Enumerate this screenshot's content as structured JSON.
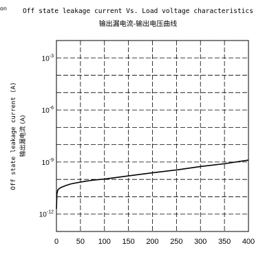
{
  "page_fragment": "on",
  "chart_data": {
    "type": "line",
    "title": "Off state leakage current Vs. Load voltage characteristics",
    "subtitle": "输出漏电流-输出电压曲线",
    "xlabel": "",
    "ylabel": "Off state leakage current (A)",
    "ylabel_zh": "输出漏电流 (A)",
    "x_scale": "linear",
    "y_scale": "log",
    "xlim": [
      0,
      400
    ],
    "ylim": [
      1e-13,
      0.01
    ],
    "x_ticks": [
      0,
      50,
      100,
      150,
      200,
      250,
      300,
      350,
      400
    ],
    "x_tick_labels": [
      "0",
      "50",
      "100",
      "150",
      "200",
      "250",
      "300",
      "350",
      "400"
    ],
    "y_ticks": [
      0.001,
      1e-06,
      1e-09,
      1e-12
    ],
    "y_tick_labels": [
      {
        "base": "10",
        "exp": "-3"
      },
      {
        "base": "10",
        "exp": "-6"
      },
      {
        "base": "10",
        "exp": "-9"
      },
      {
        "base": "10",
        "exp": "-12"
      }
    ],
    "grid": "dashed",
    "series": [
      {
        "color": "#000000",
        "x": [
          0,
          1,
          3,
          6,
          10,
          20,
          30,
          50,
          75,
          100,
          150,
          200,
          250,
          300,
          350,
          400
        ],
        "y": [
          2e-12,
          1.5e-11,
          2.5e-11,
          3e-11,
          3.5e-11,
          4.5e-11,
          5.5e-11,
          7e-11,
          9e-11,
          1.05e-10,
          1.6e-10,
          2.4e-10,
          3.5e-10,
          5.5e-10,
          8e-10,
          1.3e-09
        ]
      }
    ]
  }
}
